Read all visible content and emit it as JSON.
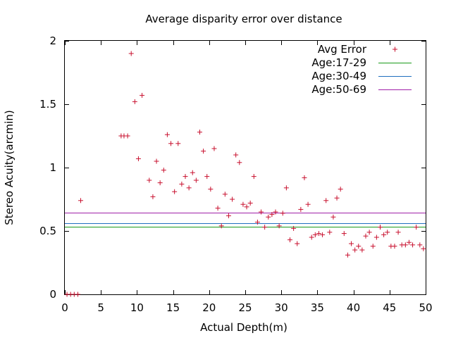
{
  "chart_data": {
    "type": "scatter",
    "title": "Average disparity error over distance",
    "xlabel": "Actual Depth(m)",
    "ylabel": "Stereo Acuity(arcmin)",
    "xlim": [
      0,
      50
    ],
    "ylim": [
      0,
      2
    ],
    "xticks": [
      0,
      5,
      10,
      15,
      20,
      25,
      30,
      35,
      40,
      45,
      50
    ],
    "yticks": [
      0,
      0.5,
      1,
      1.5,
      2
    ],
    "ytick_labels": [
      "0",
      "0.5",
      "1",
      "1.5",
      "2"
    ],
    "grid": false,
    "legend_position": "top-right",
    "series": [
      {
        "name": "Avg Error",
        "style": "points",
        "marker": "+",
        "color": "#c8102e",
        "x": [
          0.3,
          0.8,
          1.3,
          1.8,
          2.2,
          7.8,
          8.2,
          8.7,
          9.2,
          9.7,
          10.2,
          10.7,
          11.7,
          12.2,
          12.7,
          13.2,
          13.7,
          14.2,
          14.7,
          15.2,
          15.7,
          16.2,
          16.7,
          17.2,
          17.7,
          18.2,
          18.7,
          19.2,
          19.7,
          20.2,
          20.7,
          21.2,
          21.7,
          22.2,
          22.7,
          23.2,
          23.7,
          24.2,
          24.7,
          25.2,
          25.7,
          26.2,
          26.7,
          27.2,
          27.7,
          28.2,
          28.7,
          29.2,
          29.7,
          30.2,
          30.7,
          31.2,
          31.7,
          32.2,
          32.7,
          33.2,
          33.7,
          34.2,
          34.7,
          35.2,
          35.7,
          36.2,
          36.7,
          37.2,
          37.7,
          38.2,
          38.7,
          39.2,
          39.7,
          40.2,
          40.7,
          41.2,
          41.7,
          42.2,
          42.7,
          43.2,
          43.7,
          44.2,
          44.7,
          45.2,
          45.7,
          46.2,
          46.7,
          47.2,
          47.7,
          48.2,
          48.7,
          49.2,
          49.7
        ],
        "y": [
          0.0,
          0.0,
          0.0,
          0.0,
          0.74,
          1.25,
          1.25,
          1.25,
          1.9,
          1.52,
          1.07,
          1.57,
          0.9,
          0.77,
          1.05,
          0.88,
          0.98,
          1.26,
          1.19,
          0.81,
          1.19,
          0.87,
          0.93,
          0.84,
          0.96,
          0.9,
          1.28,
          1.13,
          0.93,
          0.83,
          1.15,
          0.68,
          0.54,
          0.79,
          0.62,
          0.75,
          1.1,
          1.04,
          0.71,
          0.69,
          0.72,
          0.93,
          0.57,
          0.65,
          0.53,
          0.61,
          0.63,
          0.65,
          0.54,
          0.64,
          0.84,
          0.43,
          0.52,
          0.4,
          0.67,
          0.92,
          0.71,
          0.45,
          0.47,
          0.48,
          0.47,
          0.74,
          0.49,
          0.61,
          0.76,
          0.83,
          0.48,
          0.31,
          0.4,
          0.35,
          0.38,
          0.35,
          0.46,
          0.49,
          0.38,
          0.45,
          0.53,
          0.47,
          0.49,
          0.38,
          0.38,
          0.49,
          0.39,
          0.39,
          0.41,
          0.39,
          0.53,
          0.39,
          0.36
        ]
      },
      {
        "name": "Age:17-29",
        "style": "hline",
        "color": "#1a9a1a",
        "y": 0.535
      },
      {
        "name": "Age:30-49",
        "style": "hline",
        "color": "#1f6fbf",
        "y": 0.56
      },
      {
        "name": "Age:50-69",
        "style": "hline",
        "color": "#a020a8",
        "y": 0.645
      }
    ]
  }
}
